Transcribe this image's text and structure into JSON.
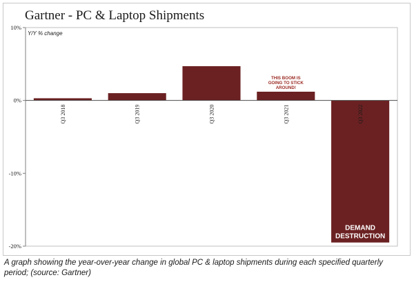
{
  "title": "Gartner - PC & Laptop Shipments",
  "caption": "A graph showing the year-over-year change in global PC & laptop shipments during each specified quarterly period; (source: Gartner)",
  "colors": {
    "bar": "#6b2122",
    "annotation_text": "#9b2a22",
    "inner_label_text": "#ffffff"
  },
  "chart_data": {
    "type": "bar",
    "unit_label": "Y/Y % change",
    "categories": [
      "Q3 2018",
      "Q3 2019",
      "Q3 2020",
      "Q3 2021",
      "Q3 2022"
    ],
    "values": [
      0.3,
      1.0,
      4.7,
      1.2,
      -19.5
    ],
    "ylim": [
      -20,
      10
    ],
    "yticks": [
      10,
      0,
      -10,
      -20
    ],
    "ytick_labels": [
      "10%",
      "0%",
      "-10%",
      "-20%"
    ],
    "grid": false,
    "annotations": [
      {
        "category": "Q3 2021",
        "lines": [
          "THIS BOOM IS",
          "GOING TO STICK",
          "AROUND!"
        ],
        "placement": "above-bar"
      },
      {
        "category": "Q3 2022",
        "lines": [
          "DEMAND",
          "DESTRUCTION"
        ],
        "placement": "inside-bar-bottom"
      }
    ]
  }
}
